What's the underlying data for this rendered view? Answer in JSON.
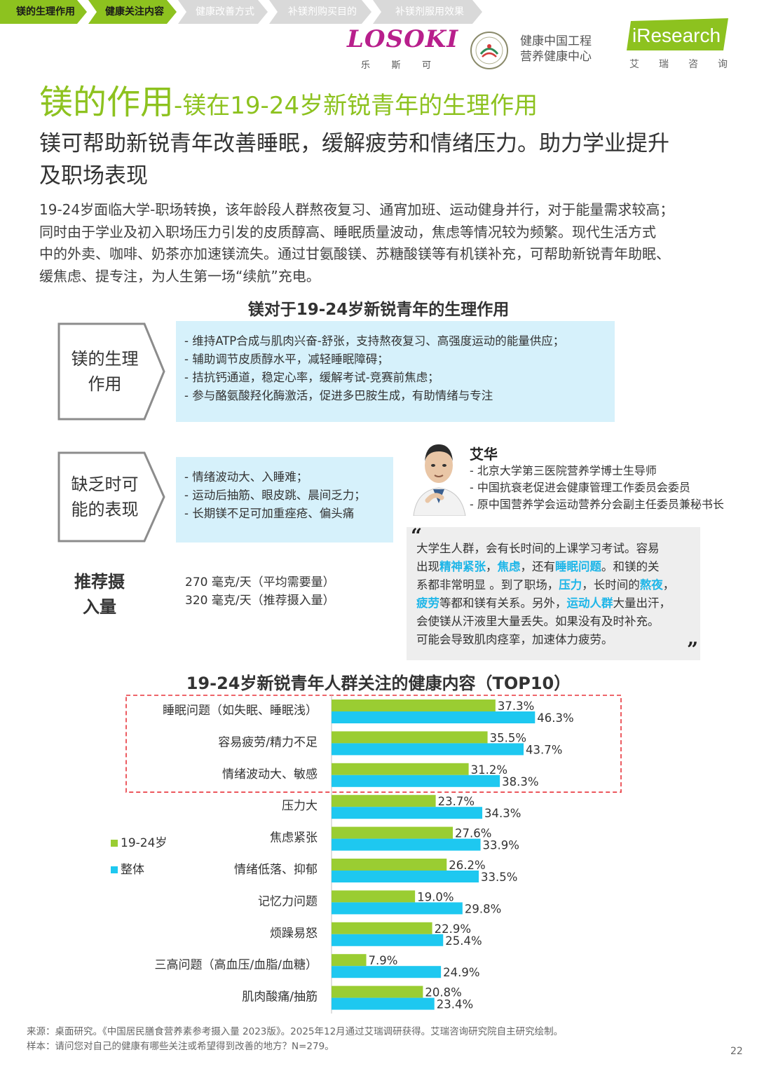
{
  "breadcrumb": [
    {
      "label": "镁的生理作用",
      "active": true
    },
    {
      "label": "健康关注内容",
      "active": true
    },
    {
      "label": "健康改善方式",
      "active": false
    },
    {
      "label": "补镁剂购买目的",
      "active": false
    },
    {
      "label": "补镁剂服用效果",
      "active": false
    }
  ],
  "logos": {
    "losoki_word": "LOSOKI",
    "losoki_cn": [
      "乐",
      "斯",
      "可"
    ],
    "health_line1": "健康中国工程",
    "health_line2": "营养健康中心",
    "iresearch_word": "iResearch",
    "iresearch_cn": [
      "艾",
      "瑞",
      "咨",
      "询"
    ]
  },
  "title": {
    "main": "镁的作用",
    "sub": "-镁在19-24岁新锐青年的生理作用"
  },
  "subtitle_line1": "镁可帮助新锐青年改善睡眠，缓解疲劳和情绪压力。助力学业提升",
  "subtitle_line2": "及职场表现",
  "intro": [
    "19-24岁面临大学-职场转换，该年龄段人群熬夜复习、通宵加班、运动健身并行，对于能量需求较高；",
    "同时由于学业及初入职场压力引发的皮质醇高、睡眠质量波动，焦虑等情况较为频繁。现代生活方式",
    "中的外卖、咖啡、奶茶亦加速镁流失。通过甘氨酸镁、苏糖酸镁等有机镁补充，可帮助新锐青年助眠、",
    "缓焦虑、提专注，为人生第一场“续航”充电。"
  ],
  "physio": {
    "section_title": "镁对于19-24岁新锐青年的生理作用",
    "box1_label_l1": "镁的生理",
    "box1_label_l2": "作用",
    "box1_items": [
      "- 维持ATP合成与肌肉兴奋-舒张，支持熬夜复习、高强度运动的能量供应；",
      "- 辅助调节皮质醇水平，减轻睡眠障碍；",
      "- 拮抗钙通道，稳定心率，缓解考试-竞赛前焦虑；",
      "- 参与酪氨酸羟化酶激活，促进多巴胺生成，有助情绪与专注"
    ],
    "box2_label_l1": "缺乏时可",
    "box2_label_l2": "能的表现",
    "box2_items": [
      "- 情绪波动大、入睡难；",
      "- 运动后抽筋、眼皮跳、晨间乏力；",
      "- 长期镁不足可加重痤疮、偏头痛"
    ],
    "recommend_l1": "推荐摄",
    "recommend_l2": "入量",
    "recommend_values": [
      "270 毫克/天（平均需要量）",
      "320 毫克/天（推荐摄入量）"
    ]
  },
  "expert": {
    "name": "艾华",
    "titles": [
      "- 北京大学第三医院营养学博士生导师",
      "- 中国抗衰老促进会健康管理工作委员会委员",
      "- 原中国营养学会运动营养分会副主任委员兼秘书长"
    ],
    "quote_open": "“",
    "quote_close": "”",
    "quote": [
      [
        {
          "t": "大学生人群，会有长时间的上课学习考试。容易"
        }
      ],
      [
        {
          "t": "出现"
        },
        {
          "t": "精神紧张",
          "h": true
        },
        {
          "t": "，"
        },
        {
          "t": "焦虑",
          "h": true
        },
        {
          "t": "，还有"
        },
        {
          "t": "睡眠问题",
          "h": true
        },
        {
          "t": "。和镁的关"
        }
      ],
      [
        {
          "t": "系都非常明显 。到了职场，"
        },
        {
          "t": "压力",
          "h": true
        },
        {
          "t": "，长时间的"
        },
        {
          "t": "熬夜",
          "h": true
        },
        {
          "t": "，"
        }
      ],
      [
        {
          "t": "疲劳",
          "h": true
        },
        {
          "t": "等都和镁有关系。另外，"
        },
        {
          "t": "运动人群",
          "h": true
        },
        {
          "t": "大量出汗，"
        }
      ],
      [
        {
          "t": "会使镁从汗液里大量丢失。如果没有及时补充。"
        }
      ],
      [
        {
          "t": "可能会导致肌肉痉挛，加速体力疲劳。"
        }
      ]
    ]
  },
  "chart_data": {
    "type": "bar",
    "orientation": "horizontal",
    "title": "19-24岁新锐青年人群关注的健康内容（TOP10）",
    "categories": [
      "睡眠问题（如失眠、睡眠浅）",
      "容易疲劳/精力不足",
      "情绪波动大、敏感",
      "压力大",
      "焦虑紧张",
      "情绪低落、抑郁",
      "记忆力问题",
      "烦躁易怒",
      "三高问题（高血压/血脂/血糖）",
      "肌肉酸痛/抽筋"
    ],
    "series": [
      {
        "name": "19-24岁",
        "color": "#9acd32",
        "values": [
          37.3,
          35.5,
          31.2,
          23.7,
          27.6,
          26.2,
          19.0,
          22.9,
          7.9,
          20.8
        ]
      },
      {
        "name": "整体",
        "color": "#1ec8f0",
        "values": [
          46.3,
          43.7,
          38.3,
          34.3,
          33.9,
          33.5,
          29.8,
          25.4,
          24.9,
          23.4
        ]
      }
    ],
    "value_format": "%",
    "highlighted_top": 3,
    "legend_position": "left"
  },
  "footnote": {
    "source": "来源：桌面研究。《中国居民膳食营养素参考摄入量 2023版》。2025年12月通过艾瑞调研获得。艾瑞咨询研究院自主研究绘制。",
    "sample": "样本：请问您对自己的健康有哪些关注或希望得到改善的地方？N=279。"
  },
  "page_number": "22",
  "colors": {
    "accent_green": "#8dc21f",
    "bar_green": "#9acd32",
    "bar_blue": "#1ec8f0",
    "highlight_blue": "#1fb6e8",
    "light_blue_box": "#d6f1fb",
    "dashed_red": "#e8333a"
  }
}
